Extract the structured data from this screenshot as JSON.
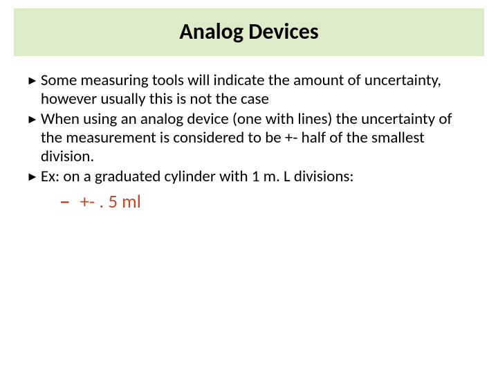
{
  "title": "Analog Devices",
  "bullets": [
    "Some measuring tools will indicate the amount of uncertainty, however usually this is not the case",
    "When using an analog device (one with lines) the uncertainty of the measurement is considered to be +- half of the smallest division.",
    "Ex: on a graduated cylinder with 1 m. L divisions:"
  ],
  "subitem": {
    "marker": "–",
    "text": "+- . 5 ml"
  },
  "colors": {
    "title_bg": "#dcecc9",
    "title_text": "#000000",
    "bullet_marker": "#000000",
    "body_text": "#000000",
    "sub_color": "#c24927",
    "page_bg": "#ffffff"
  },
  "typography": {
    "title_fontsize": 32,
    "title_weight": 700,
    "body_fontsize": 23,
    "body_lineheight": 27,
    "sub_fontsize": 27,
    "sub_lineheight": 34
  },
  "bullet_glyph": "►"
}
